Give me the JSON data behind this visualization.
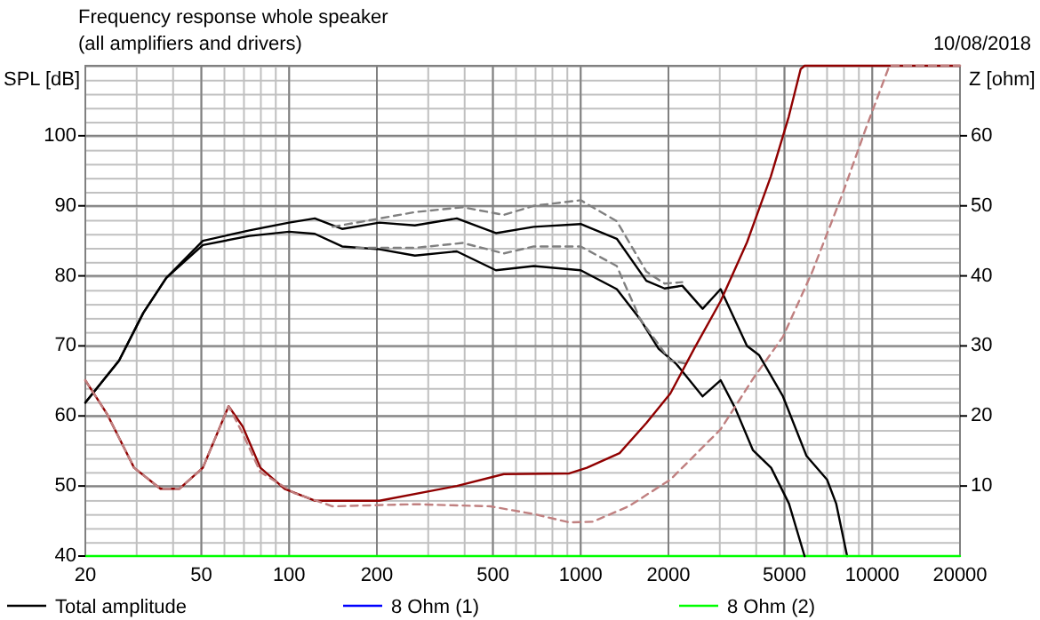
{
  "chart_data": {
    "type": "line",
    "title": "Frequency response whole speaker",
    "subtitle": "(all amplifiers and drivers)",
    "ylabel": "SPL [dB]",
    "y2label": "Z [ohm]",
    "annotations": [
      "10/08/2018"
    ],
    "log": "x",
    "xlim": [
      20,
      20000
    ],
    "xticks": [
      20,
      50,
      100,
      200,
      500,
      1000,
      2000,
      5000,
      10000,
      20000
    ],
    "ylim": [
      40,
      110
    ],
    "yticks": [
      40,
      50,
      60,
      70,
      80,
      90,
      100
    ],
    "y2lim": [
      0,
      70
    ],
    "y2ticks": [
      10,
      20,
      30,
      40,
      50,
      60
    ],
    "grid": true,
    "legend": "bottom",
    "series": [
      {
        "name": "Total amplitude",
        "color": "#000000",
        "x": [
          20,
          26.1,
          31.6,
          37.9,
          50.6,
          73.1,
          100,
          122.5,
          152,
          204,
          270,
          376,
          512,
          690,
          1000,
          1330,
          1680,
          1940,
          2230,
          2620,
          3020,
          3720,
          4090,
          4940,
          5950,
          7000,
          7520,
          8200
        ],
        "values": [
          61.9,
          67.9,
          74.7,
          79.7,
          85.0,
          86.5,
          87.6,
          88.2,
          86.7,
          87.6,
          87.2,
          88.2,
          86.1,
          87.0,
          87.4,
          85.3,
          79.3,
          78.2,
          78.6,
          75.3,
          78.1,
          70.0,
          68.7,
          62.8,
          54.3,
          50.9,
          47.5,
          40
        ]
      },
      {
        "name": "8 Ohm  (1)",
        "color": "#0000ff"
      },
      {
        "name": "8 Ohm (2)",
        "color": "#00ff00",
        "x": [
          20,
          20000
        ],
        "values": [
          40,
          40
        ]
      },
      {
        "color": "#000000",
        "x": [
          20,
          26.1,
          31.6,
          37.9,
          50.6,
          73.1,
          100,
          122.5,
          152,
          204,
          270,
          376,
          512,
          690,
          1000,
          1330,
          1600,
          1850,
          2130,
          2620,
          3020,
          3390,
          3900,
          4500,
          5180,
          5860
        ],
        "values": [
          61.9,
          67.9,
          74.7,
          79.7,
          84.4,
          85.7,
          86.3,
          86.0,
          84.2,
          83.8,
          82.9,
          83.5,
          80.8,
          81.4,
          80.8,
          78.1,
          73.8,
          69.6,
          67.4,
          62.8,
          65.1,
          61.1,
          55.1,
          52.6,
          47.5,
          40
        ]
      },
      {
        "color": "#808080",
        "line_style": "dashed",
        "x": [
          141,
          170,
          270,
          394,
          545,
          690,
          1000,
          1330,
          1680,
          1940,
          2230
        ],
        "values": [
          87.0,
          87.6,
          89.1,
          89.8,
          88.7,
          90.0,
          90.8,
          87.8,
          80.6,
          78.9,
          79.1
        ]
      },
      {
        "color": "#808080",
        "line_style": "dashed",
        "x": [
          170,
          270,
          394,
          545,
          690,
          1000,
          1330,
          1600,
          2030,
          2350
        ],
        "values": [
          84.0,
          84.0,
          84.7,
          83.2,
          84.2,
          84.2,
          81.4,
          73.8,
          67.9,
          67.4
        ]
      },
      {
        "color": "#900000",
        "axis": "y2",
        "x": [
          20,
          23.8,
          29.4,
          36.2,
          42.0,
          50.6,
          62.0,
          69.3,
          79.7,
          96.5,
          122.5,
          204,
          376,
          545,
          915,
          1050,
          1360,
          1680,
          2030,
          2450,
          3020,
          3720,
          4490,
          5170,
          5680,
          5860,
          20000
        ],
        "values": [
          25.1,
          20.2,
          12.6,
          9.6,
          9.6,
          12.6,
          21.4,
          18.5,
          12.6,
          9.6,
          7.9,
          7.9,
          10.0,
          11.7,
          11.8,
          12.6,
          14.7,
          19.0,
          23.2,
          29.6,
          36.4,
          44.8,
          54.2,
          62.7,
          69.5,
          70,
          70
        ]
      },
      {
        "color": "#c08080",
        "axis": "y2",
        "line_style": "dashed",
        "x": [
          20,
          23.8,
          29.4,
          36.2,
          42.0,
          50.6,
          62.0,
          69.3,
          79.7,
          104,
          141,
          270,
          490,
          690,
          915,
          1100,
          1460,
          2030,
          3020,
          3900,
          4940,
          6230,
          7890,
          9500,
          11450,
          20000
        ],
        "values": [
          25.1,
          20.2,
          12.6,
          9.6,
          9.6,
          12.6,
          21.4,
          17.5,
          12.0,
          9.0,
          7.1,
          7.4,
          7.1,
          6.0,
          4.8,
          4.9,
          7.1,
          10.9,
          18.1,
          25.3,
          31.3,
          40.6,
          51.6,
          61.0,
          70,
          70
        ]
      }
    ]
  }
}
